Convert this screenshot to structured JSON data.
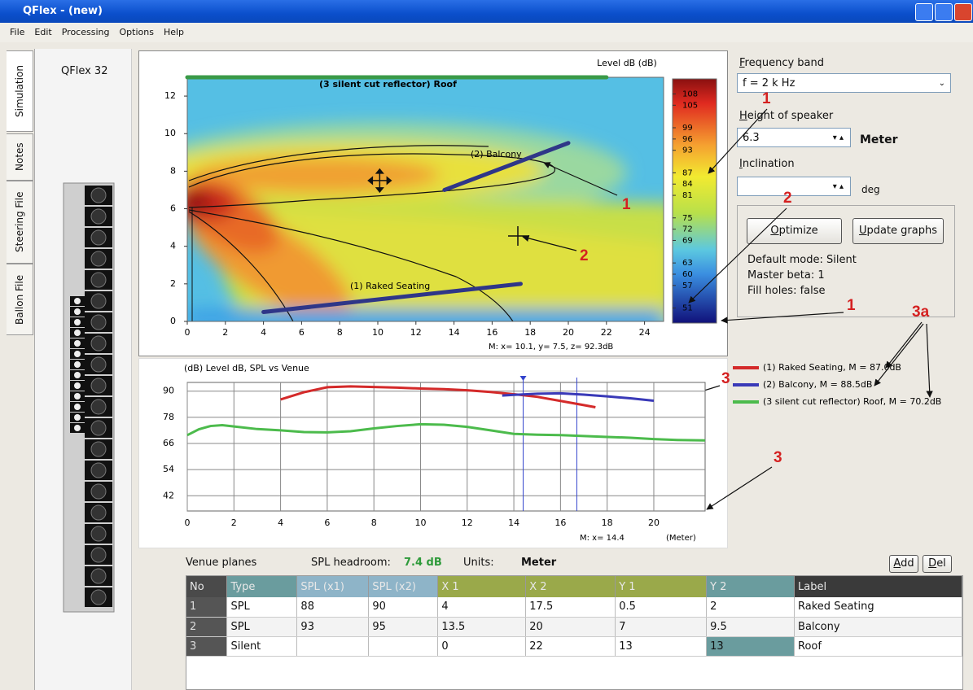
{
  "window": {
    "title": "QFlex - (new)"
  },
  "menu": [
    "File",
    "Edit",
    "Processing",
    "Options",
    "Help"
  ],
  "tabs": [
    "Simulation",
    "Notes",
    "Steering File",
    "Ballon File"
  ],
  "device": {
    "name": "QFlex 32"
  },
  "chart_data": [
    {
      "type": "heatmap",
      "title": "Level dB  (dB)",
      "xlim": [
        0,
        25
      ],
      "ylim": [
        0,
        13
      ],
      "xticks": [
        0,
        2,
        4,
        6,
        8,
        10,
        12,
        14,
        16,
        18,
        20,
        22,
        24
      ],
      "yticks": [
        0,
        2,
        4,
        6,
        8,
        10,
        12
      ],
      "colorbar": {
        "lim": [
          47,
          112
        ],
        "ticks": [
          108,
          105,
          99,
          96,
          93,
          87,
          84,
          81,
          75,
          72,
          69,
          63,
          60,
          57,
          51
        ]
      },
      "plane_labels": [
        "(1) Raked Seating",
        "(2) Balcony",
        "(3 silent cut reflector) Roof"
      ],
      "plane_colors": [
        "#2f3688",
        "#2f3688",
        "#3a9a48"
      ],
      "readout": {
        "x": 10.1,
        "y": 7.5,
        "label": "M:  x= 10.1,  y= 7.5,  z= 92.3dB"
      }
    },
    {
      "type": "line",
      "title": "(dB)  Level dB, SPL vs Venue",
      "xlim": [
        0,
        22.2
      ],
      "ylim": [
        35,
        94
      ],
      "xticks": [
        0,
        2,
        4,
        6,
        8,
        10,
        12,
        14,
        16,
        18,
        20
      ],
      "yticks": [
        42,
        54,
        66,
        78,
        90
      ],
      "grid": true,
      "x_unit": "(Meter)",
      "cursors": [
        {
          "value": 14.4,
          "label": "M:  x= 14.4"
        },
        16.7
      ],
      "series": [
        {
          "name": "(1) Raked Seating, M = 87.0dB",
          "color": "#d42a2a",
          "x": [
            4,
            5,
            6,
            7,
            8,
            9,
            10,
            11,
            12,
            13,
            14,
            15,
            16,
            17,
            17.5
          ],
          "values": [
            86.2,
            89.5,
            91.8,
            92.2,
            91.9,
            91.6,
            91.2,
            90.9,
            90.4,
            89.6,
            88.6,
            87.4,
            85.5,
            83.6,
            82.6
          ]
        },
        {
          "name": "(2) Balcony, M = 88.5dB",
          "color": "#3a3ab8",
          "x": [
            13.5,
            14,
            15,
            16,
            17,
            18,
            19,
            20
          ],
          "values": [
            88,
            88.3,
            88.8,
            89,
            88.4,
            87.6,
            86.7,
            85.6
          ]
        },
        {
          "name": "(3 silent cut reflector) Roof, M = 70.2dB",
          "color": "#4cbb4c",
          "x": [
            0,
            0.5,
            1,
            1.5,
            2,
            3,
            4,
            5,
            6,
            7,
            8,
            9,
            10,
            11,
            12,
            13,
            14,
            15,
            16,
            17,
            18,
            19,
            20,
            21,
            22.2
          ],
          "values": [
            69.8,
            72.5,
            74,
            74.4,
            73.8,
            72.6,
            72,
            71.2,
            71.1,
            71.6,
            72.9,
            74,
            74.8,
            74.6,
            73.6,
            72,
            70.4,
            70,
            69.8,
            69.4,
            69,
            68.6,
            68,
            67.6,
            67.4
          ]
        }
      ]
    }
  ],
  "controls": {
    "frequency": {
      "label": "Frequency band",
      "value": "f = 2 k Hz"
    },
    "height": {
      "label": "Height of speaker",
      "value": 6.3,
      "unit": "Meter"
    },
    "inclination": {
      "label": "Inclination",
      "unit": "deg"
    },
    "buttons": [
      "Optimize",
      "Update graphs"
    ],
    "status": [
      "Default mode: Silent",
      "Master beta: 1",
      "Fill holes: false"
    ]
  },
  "venue": {
    "title": "Venue planes",
    "headroom_label": "SPL headroom:",
    "headroom": "7.4 dB",
    "units_label": "Units:",
    "units": "Meter",
    "buttons": [
      "Add",
      "Del"
    ]
  },
  "table": {
    "header": [
      "No",
      "Type",
      "SPL (x1)",
      "SPL (x2)",
      "X 1",
      "X 2",
      "Y 1",
      "Y 2",
      "Label"
    ],
    "rows": [
      [
        1,
        "SPL",
        88,
        90,
        4,
        17.5,
        0.5,
        2,
        "Raked Seating"
      ],
      [
        2,
        "SPL",
        93,
        95,
        13.5,
        20,
        7,
        9.5,
        "Balcony"
      ],
      [
        3,
        "Silent",
        null,
        null,
        0,
        22,
        13,
        13,
        "Roof"
      ]
    ]
  },
  "annotations": [
    "1",
    "1",
    "2",
    "2",
    "1",
    "3a",
    "3",
    "3"
  ]
}
